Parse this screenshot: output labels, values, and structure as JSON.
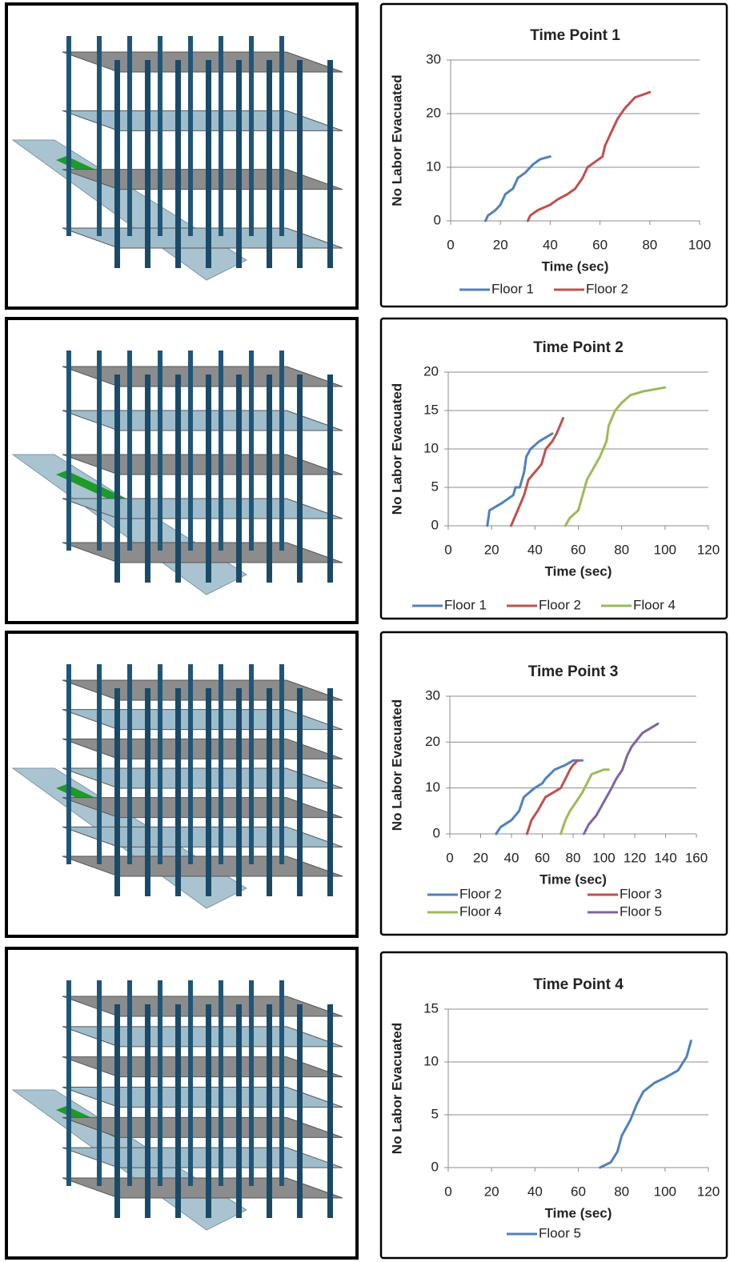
{
  "chart_data": [
    {
      "type": "line",
      "title": "Time Point 1",
      "x_label": "Time (sec)",
      "y_label": "No Labor Evacuated",
      "xlim": [
        0,
        100
      ],
      "xticks": [
        0,
        20,
        40,
        60,
        80,
        100
      ],
      "ylim": [
        0,
        30
      ],
      "yticks": [
        0,
        10,
        20,
        30
      ],
      "grid": true,
      "series": [
        {
          "name": "Floor 1",
          "color": "#4f81bd",
          "x": [
            14,
            15,
            18,
            20,
            22,
            25,
            27,
            30,
            33,
            36,
            40
          ],
          "values": [
            0,
            1,
            2,
            3,
            5,
            6,
            8,
            9,
            10.5,
            11.5,
            12
          ]
        },
        {
          "name": "Floor 2",
          "color": "#c0504d",
          "x": [
            31,
            32,
            35,
            40,
            43,
            47,
            50,
            53,
            55,
            58,
            61,
            62,
            63,
            65,
            67,
            70,
            74,
            80
          ],
          "values": [
            0,
            1,
            2,
            3,
            4,
            5,
            6,
            8,
            10,
            11,
            12,
            14,
            15,
            17,
            19,
            21,
            23,
            24
          ]
        }
      ]
    },
    {
      "type": "line",
      "title": "Time Point 2",
      "x_label": "Time (sec)",
      "y_label": "No Labor Evacuated",
      "xlim": [
        0,
        120
      ],
      "xticks": [
        0,
        20,
        40,
        60,
        80,
        100,
        120
      ],
      "ylim": [
        0,
        20
      ],
      "yticks": [
        0,
        5,
        10,
        15,
        20
      ],
      "grid": true,
      "series": [
        {
          "name": "Floor 1",
          "color": "#4f81bd",
          "x": [
            18,
            19,
            25,
            30,
            31,
            33,
            35,
            36,
            38,
            42,
            48
          ],
          "values": [
            0,
            2,
            3,
            4,
            5,
            5,
            7,
            9,
            10,
            11,
            12
          ]
        },
        {
          "name": "Floor 2",
          "color": "#c0504d",
          "x": [
            29,
            32,
            35,
            37,
            40,
            43,
            45,
            48,
            50,
            53
          ],
          "values": [
            0,
            2,
            4,
            6,
            7,
            8,
            10,
            11,
            12,
            14
          ]
        },
        {
          "name": "Floor 4",
          "color": "#9bbb59",
          "x": [
            54,
            56,
            60,
            62,
            64,
            66,
            70,
            73,
            74,
            77,
            80,
            84,
            90,
            100
          ],
          "values": [
            0,
            1,
            2,
            4,
            6,
            7,
            9,
            11,
            13,
            15,
            16,
            17,
            17.5,
            18
          ]
        }
      ]
    },
    {
      "type": "line",
      "title": "Time Point 3",
      "x_label": "Time (sec)",
      "y_label": "No Labor Evacuated",
      "xlim": [
        0,
        160
      ],
      "xticks": [
        0,
        20,
        40,
        60,
        80,
        100,
        120,
        140,
        160
      ],
      "ylim": [
        0,
        30
      ],
      "yticks": [
        0,
        10,
        20,
        30
      ],
      "grid": true,
      "series": [
        {
          "name": "Floor 2",
          "color": "#4f81bd",
          "x": [
            30,
            33,
            40,
            45,
            48,
            55,
            60,
            62,
            68,
            75,
            80,
            86
          ],
          "values": [
            0,
            1.5,
            3,
            5,
            8,
            10,
            11,
            12,
            14,
            15,
            16,
            16
          ]
        },
        {
          "name": "Floor 3",
          "color": "#c0504d",
          "x": [
            50,
            53,
            57,
            62,
            67,
            72,
            75,
            78,
            80,
            83
          ],
          "values": [
            0,
            3,
            5,
            8,
            9,
            10,
            12,
            14,
            15,
            16
          ]
        },
        {
          "name": "Floor 4",
          "color": "#9bbb59",
          "x": [
            72,
            75,
            78,
            82,
            86,
            89,
            92,
            100,
            103
          ],
          "values": [
            0,
            3,
            5,
            7,
            9,
            11,
            13,
            14,
            14
          ]
        },
        {
          "name": "Floor 5",
          "color": "#8064a2",
          "x": [
            87,
            90,
            95,
            100,
            105,
            108,
            112,
            115,
            118,
            125,
            135
          ],
          "values": [
            0,
            2,
            4,
            7,
            10,
            12,
            14,
            17,
            19,
            22,
            24
          ]
        }
      ]
    },
    {
      "type": "line",
      "title": "Time Point 4",
      "x_label": "Time (sec)",
      "y_label": "No Labor Evacuated",
      "xlim": [
        0,
        120
      ],
      "xticks": [
        0,
        20,
        40,
        60,
        80,
        100,
        120
      ],
      "ylim": [
        0,
        15
      ],
      "yticks": [
        0,
        5,
        10,
        15
      ],
      "grid": true,
      "series": [
        {
          "name": "Floor 5",
          "color": "#4f81bd",
          "x": [
            70,
            75,
            78,
            80,
            84,
            87,
            90,
            95,
            100,
            106,
            110,
            112
          ],
          "values": [
            0,
            0.5,
            1.5,
            3,
            4.5,
            6,
            7.2,
            8,
            8.5,
            9.2,
            10.5,
            12
          ]
        }
      ]
    }
  ]
}
